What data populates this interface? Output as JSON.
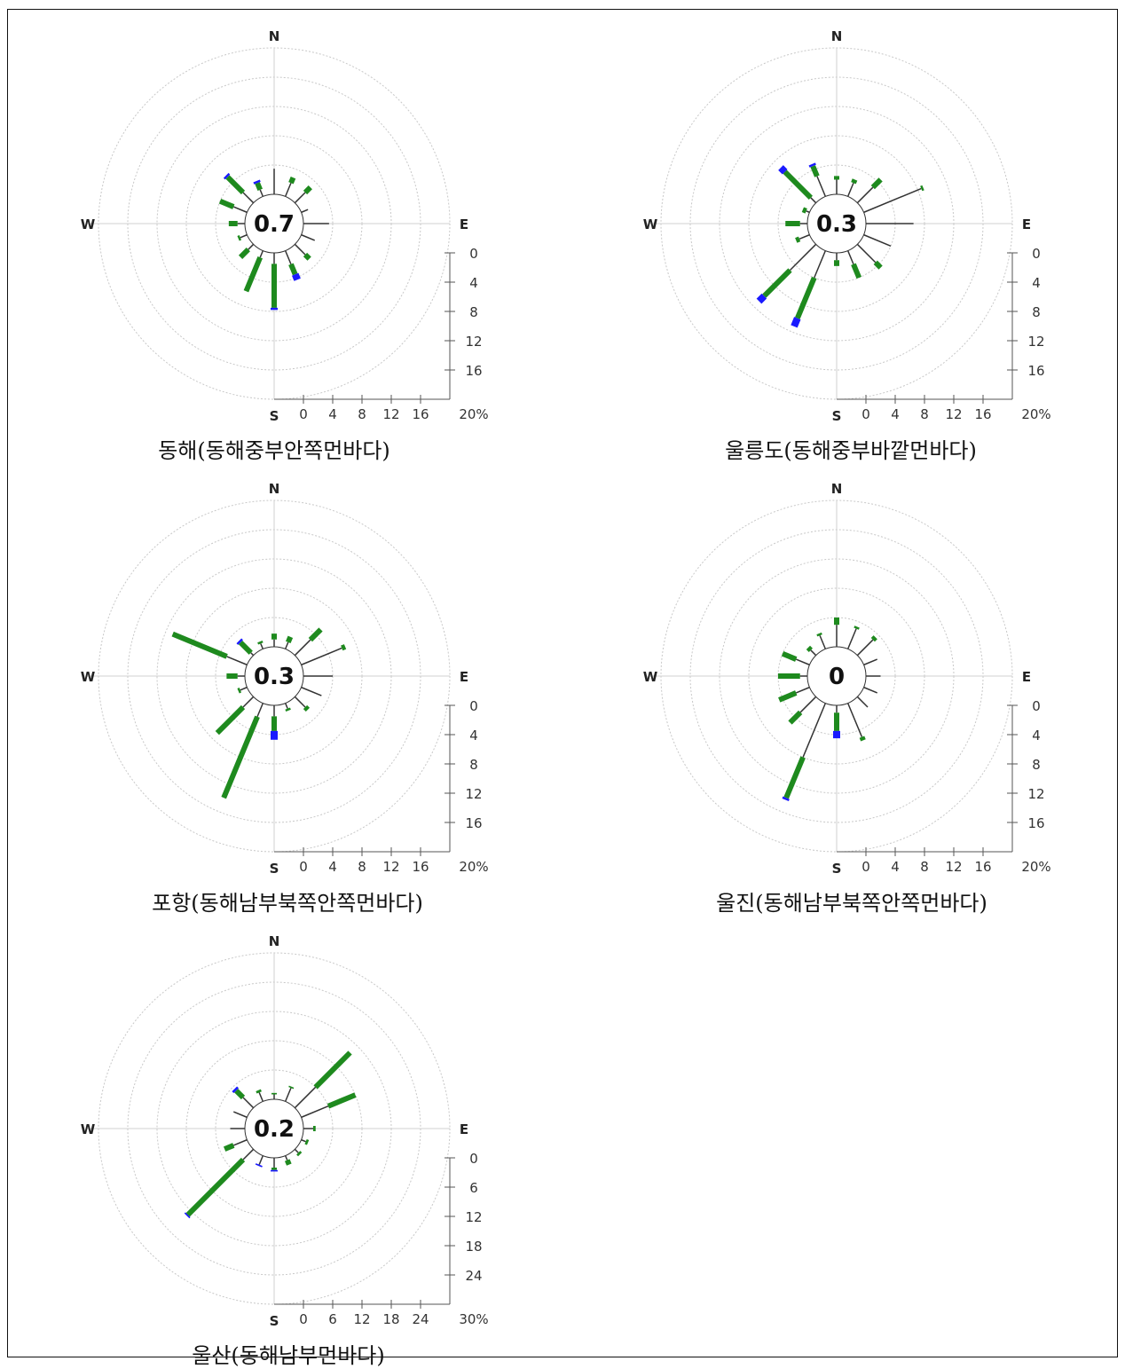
{
  "chart_data": [
    {
      "type": "windrose",
      "caption": "동해(동해중부안쪽먼바다)",
      "calm": "0.7",
      "compass": [
        "N",
        "E",
        "S",
        "W"
      ],
      "scale_ticks": [
        "0",
        "4",
        "8",
        "12",
        "16",
        "20%"
      ],
      "scale_max": 20,
      "directions": [
        "N",
        "NNE",
        "NE",
        "ENE",
        "E",
        "ESE",
        "SE",
        "SSE",
        "S",
        "SSW",
        "SW",
        "WSW",
        "W",
        "WNW",
        "NW",
        "NNW"
      ],
      "series": [
        {
          "name": "thin",
          "color": "#333333",
          "values": [
            3.5,
            2,
            2,
            1,
            3.5,
            2,
            2,
            2,
            1.5,
            1,
            1,
            1,
            1,
            2,
            2,
            1
          ]
        },
        {
          "name": "green",
          "color": "#1e8a1e",
          "values": [
            0,
            0.8,
            1,
            0,
            0,
            0,
            0.8,
            1.5,
            6,
            5,
            1.5,
            0.3,
            1.2,
            2,
            3,
            1
          ]
        },
        {
          "name": "blue",
          "color": "#1a1aff",
          "values": [
            0,
            0,
            0,
            0,
            0,
            0,
            0,
            0.8,
            0.3,
            0,
            0,
            0,
            0,
            0,
            0.3,
            0.3
          ]
        }
      ]
    },
    {
      "type": "windrose",
      "caption": "울릉도(동해중부바깥먼바다)",
      "calm": "0.3",
      "compass": [
        "N",
        "E",
        "S",
        "W"
      ],
      "scale_ticks": [
        "0",
        "4",
        "8",
        "12",
        "16",
        "20%"
      ],
      "scale_max": 20,
      "directions": [
        "N",
        "NNE",
        "NE",
        "ENE",
        "E",
        "ESE",
        "SE",
        "SSE",
        "S",
        "SSW",
        "SW",
        "WSW",
        "W",
        "WNW",
        "NW",
        "NNW"
      ],
      "series": [
        {
          "name": "thin",
          "color": "#333333",
          "values": [
            2,
            2,
            3,
            8.5,
            6.5,
            4,
            3.5,
            2,
            1,
            4,
            5,
            1.5,
            1,
            0.5,
            1,
            3
          ]
        },
        {
          "name": "green",
          "color": "#1e8a1e",
          "values": [
            0.5,
            0.5,
            1.5,
            0.3,
            0,
            0,
            1,
            2,
            0.8,
            6,
            5,
            0.5,
            2,
            0.5,
            5,
            1.5
          ]
        },
        {
          "name": "blue",
          "color": "#1a1aff",
          "values": [
            0,
            0,
            0,
            0,
            0,
            0,
            0,
            0,
            0,
            1.2,
            1,
            0,
            0,
            0,
            0.8,
            0.3
          ]
        }
      ]
    },
    {
      "type": "windrose",
      "caption": "포항(동해남부북쪽안쪽먼바다)",
      "calm": "0.3",
      "compass": [
        "N",
        "E",
        "S",
        "W"
      ],
      "scale_ticks": [
        "0",
        "4",
        "8",
        "12",
        "16",
        "20%"
      ],
      "scale_max": 20,
      "directions": [
        "N",
        "NNE",
        "NE",
        "ENE",
        "E",
        "ESE",
        "SE",
        "SSE",
        "S",
        "SSW",
        "SW",
        "WSW",
        "W",
        "WNW",
        "NW",
        "NNW"
      ],
      "series": [
        {
          "name": "thin",
          "color": "#333333",
          "values": [
            1,
            1,
            3,
            6,
            4,
            3,
            2,
            0.8,
            1.5,
            2,
            2,
            1,
            1,
            3,
            0.5,
            0.8
          ]
        },
        {
          "name": "green",
          "color": "#1e8a1e",
          "values": [
            0.8,
            0.8,
            2,
            0.5,
            0,
            0,
            0.5,
            0.3,
            2,
            12,
            5,
            0.3,
            1.5,
            8,
            2,
            0.3
          ]
        },
        {
          "name": "blue",
          "color": "#1a1aff",
          "values": [
            0,
            0,
            0,
            0,
            0,
            0,
            0,
            0,
            1.2,
            0,
            0,
            0,
            0,
            0,
            0.3,
            0
          ]
        }
      ]
    },
    {
      "type": "windrose",
      "caption": "울진(동해남부북쪽안쪽먼바다)",
      "calm": "0",
      "compass": [
        "N",
        "E",
        "S",
        "W"
      ],
      "scale_ticks": [
        "0",
        "4",
        "8",
        "12",
        "16",
        "20%"
      ],
      "scale_max": 20,
      "directions": [
        "N",
        "NNE",
        "NE",
        "ENE",
        "E",
        "ESE",
        "SE",
        "SSE",
        "S",
        "SSW",
        "SW",
        "WSW",
        "W",
        "WNW",
        "NW",
        "NNW"
      ],
      "series": [
        {
          "name": "thin",
          "color": "#333333",
          "values": [
            3,
            3,
            3,
            2,
            2,
            2,
            2,
            5,
            1,
            8,
            3,
            2,
            1,
            2,
            1,
            2
          ]
        },
        {
          "name": "green",
          "color": "#1e8a1e",
          "values": [
            1,
            0.3,
            0.5,
            0,
            0,
            0,
            0,
            0.5,
            2.5,
            6,
            2,
            2.5,
            3,
            2,
            0.5,
            0.3
          ]
        },
        {
          "name": "blue",
          "color": "#1a1aff",
          "values": [
            0,
            0,
            0,
            0,
            0,
            0,
            0,
            0,
            1,
            0.3,
            0,
            0,
            0,
            0,
            0,
            0
          ]
        }
      ]
    },
    {
      "type": "windrose",
      "caption": "울산(동해남부먼바다)",
      "calm": "0.2",
      "compass": [
        "N",
        "E",
        "S",
        "W"
      ],
      "scale_ticks": [
        "0",
        "6",
        "12",
        "18",
        "24",
        "30%"
      ],
      "scale_max": 30,
      "directions": [
        "N",
        "NNE",
        "NE",
        "ENE",
        "E",
        "ESE",
        "SE",
        "SSE",
        "S",
        "SSW",
        "SW",
        "WSW",
        "W",
        "WNW",
        "NW",
        "NNW"
      ],
      "series": [
        {
          "name": "thin",
          "color": "#333333",
          "values": [
            1,
            3,
            6,
            6,
            2,
            1,
            1,
            1,
            2,
            2,
            3,
            3,
            3,
            3,
            3,
            2
          ]
        },
        {
          "name": "green",
          "color": "#1e8a1e",
          "values": [
            0.3,
            0.3,
            10,
            6,
            0.5,
            0.5,
            0.5,
            1,
            0.5,
            0,
            16,
            2,
            0,
            0,
            2,
            0.5
          ]
        },
        {
          "name": "blue",
          "color": "#1a1aff",
          "values": [
            0,
            0,
            0,
            0,
            0,
            0,
            0,
            0,
            0.3,
            0.3,
            0.3,
            0,
            0,
            0,
            0.5,
            0
          ]
        }
      ]
    }
  ]
}
